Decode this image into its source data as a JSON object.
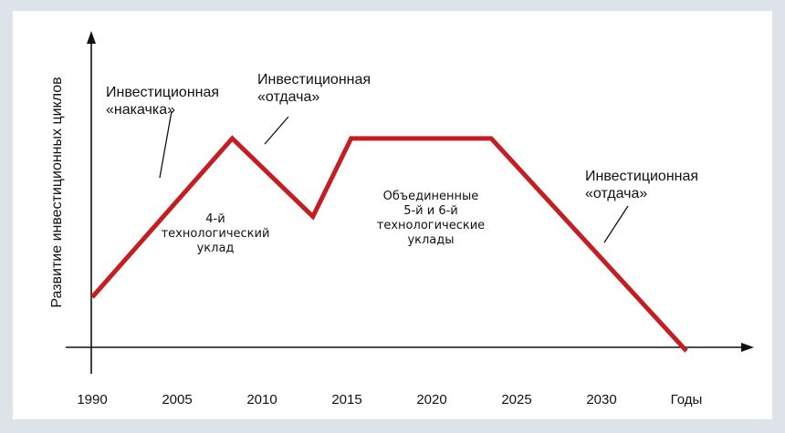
{
  "chart_data": {
    "type": "line",
    "ylabel": "Развитие инвестиционных циклов",
    "xlabel": "Годы",
    "categories": [
      "1990",
      "2005",
      "2010",
      "2015",
      "2020",
      "2025",
      "2030"
    ],
    "x_end_label": "Годы",
    "series": [
      {
        "points": [
          {
            "x": 1.0,
            "y": 0.22
          },
          {
            "x": 2.65,
            "y": 0.87
          },
          {
            "x": 3.6,
            "y": 0.55
          },
          {
            "x": 4.05,
            "y": 0.87
          },
          {
            "x": 5.7,
            "y": 0.87
          },
          {
            "x": 8.0,
            "y": 0.0
          }
        ],
        "color": "#c41e23"
      }
    ],
    "annotations": [
      {
        "id": "pump",
        "lines": [
          "Инвестиционная",
          "«накачка»"
        ]
      },
      {
        "id": "return1",
        "lines": [
          "Инвестиционная",
          "«отдача»"
        ]
      },
      {
        "id": "return2",
        "lines": [
          "Инвестиционная",
          "«отдача»"
        ]
      },
      {
        "id": "region4",
        "lines": [
          "4-й",
          "технологический",
          "уклад"
        ]
      },
      {
        "id": "region56",
        "lines": [
          "Объединенные",
          "5-й и 6-й",
          "технологические",
          "уклады"
        ]
      }
    ],
    "grid": false,
    "legend": "none"
  },
  "colors": {
    "line": "#c41e23",
    "axis": "#111111",
    "background": "#dde3e8",
    "panel": "#ffffff"
  }
}
